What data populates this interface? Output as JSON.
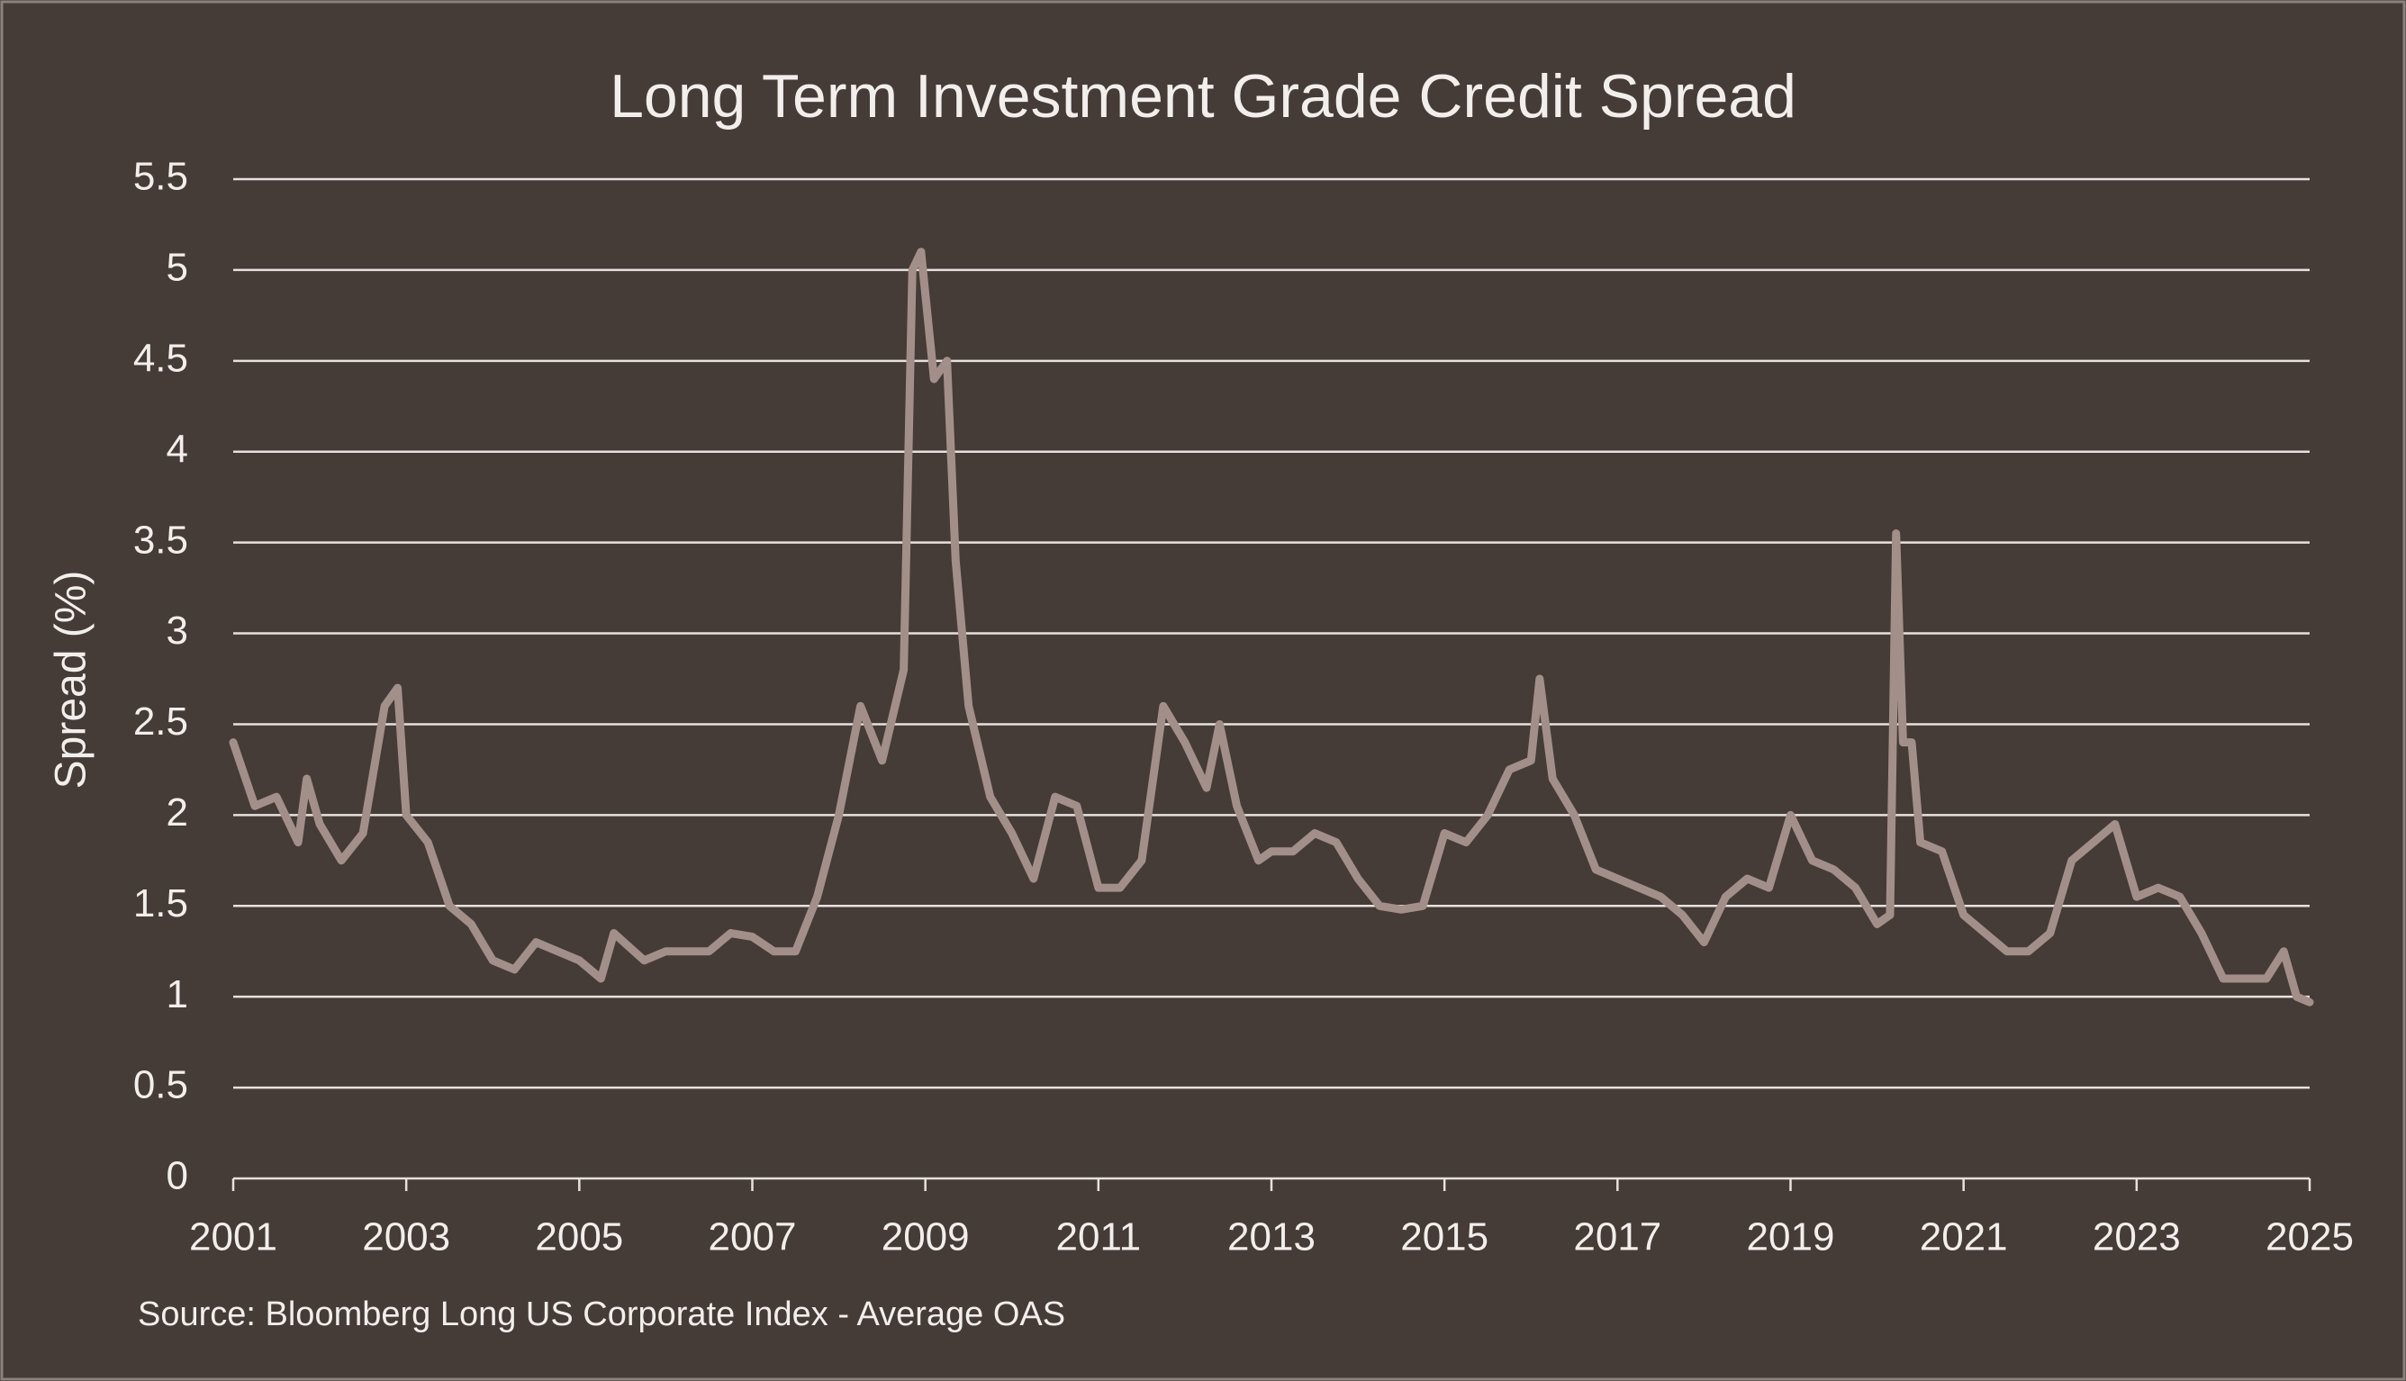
{
  "chart_data": {
    "type": "line",
    "title": "Long Term Investment Grade Credit Spread",
    "y_label": "Spread (%)",
    "source": "Source: Bloomberg Long US Corporate Index - Average OAS",
    "x": [
      2001.0,
      2001.25,
      2001.5,
      2001.75,
      2001.85,
      2002.0,
      2002.25,
      2002.5,
      2002.75,
      2002.9,
      2003.0,
      2003.25,
      2003.5,
      2003.75,
      2004.0,
      2004.25,
      2004.5,
      2004.75,
      2005.0,
      2005.25,
      2005.4,
      2005.75,
      2006.0,
      2006.5,
      2006.75,
      2007.0,
      2007.25,
      2007.5,
      2007.75,
      2008.0,
      2008.25,
      2008.5,
      2008.75,
      2008.85,
      2008.95,
      2009.1,
      2009.25,
      2009.35,
      2009.5,
      2009.75,
      2010.0,
      2010.25,
      2010.5,
      2010.75,
      2011.0,
      2011.25,
      2011.5,
      2011.75,
      2012.0,
      2012.25,
      2012.4,
      2012.6,
      2012.85,
      2013.0,
      2013.25,
      2013.5,
      2013.75,
      2014.0,
      2014.25,
      2014.5,
      2014.75,
      2015.0,
      2015.25,
      2015.5,
      2015.75,
      2016.0,
      2016.1,
      2016.25,
      2016.5,
      2016.75,
      2017.0,
      2017.25,
      2017.5,
      2017.75,
      2018.0,
      2018.25,
      2018.5,
      2018.75,
      2019.0,
      2019.25,
      2019.5,
      2019.75,
      2020.0,
      2020.15,
      2020.22,
      2020.3,
      2020.4,
      2020.5,
      2020.75,
      2021.0,
      2021.25,
      2021.5,
      2021.75,
      2022.0,
      2022.25,
      2022.5,
      2022.75,
      2023.0,
      2023.25,
      2023.5,
      2023.75,
      2024.0,
      2024.25,
      2024.5,
      2024.7,
      2024.85,
      2025.0
    ],
    "series": [
      {
        "name": "Average OAS",
        "color": "#a38f89",
        "values": [
          2.4,
          2.05,
          2.1,
          1.85,
          2.2,
          1.95,
          1.75,
          1.9,
          2.6,
          2.7,
          2.0,
          1.85,
          1.5,
          1.4,
          1.2,
          1.15,
          1.3,
          1.25,
          1.2,
          1.1,
          1.35,
          1.2,
          1.25,
          1.25,
          1.35,
          1.33,
          1.25,
          1.25,
          1.55,
          2.0,
          2.6,
          2.3,
          2.8,
          5.0,
          5.1,
          4.4,
          4.5,
          3.4,
          2.6,
          2.1,
          1.9,
          1.65,
          2.1,
          2.05,
          1.6,
          1.6,
          1.75,
          2.6,
          2.4,
          2.15,
          2.5,
          2.05,
          1.75,
          1.8,
          1.8,
          1.9,
          1.85,
          1.65,
          1.5,
          1.48,
          1.5,
          1.9,
          1.85,
          2.0,
          2.25,
          2.3,
          2.75,
          2.2,
          2.0,
          1.7,
          1.65,
          1.6,
          1.55,
          1.45,
          1.3,
          1.55,
          1.65,
          1.6,
          2.0,
          1.75,
          1.7,
          1.6,
          1.4,
          1.45,
          3.55,
          2.4,
          2.4,
          1.85,
          1.8,
          1.45,
          1.35,
          1.25,
          1.25,
          1.35,
          1.75,
          1.85,
          1.95,
          1.55,
          1.6,
          1.55,
          1.35,
          1.1,
          1.1,
          1.1,
          1.25,
          1.0,
          0.97
        ]
      }
    ],
    "xlim": [
      2001,
      2025
    ],
    "xticks": [
      2001,
      2003,
      2005,
      2007,
      2009,
      2011,
      2013,
      2015,
      2017,
      2019,
      2021,
      2023,
      2025
    ],
    "ylim": [
      0,
      5.5
    ],
    "yticks": [
      0,
      0.5,
      1,
      1.5,
      2,
      2.5,
      3,
      3.5,
      4,
      4.5,
      5,
      5.5
    ],
    "grid": true
  }
}
